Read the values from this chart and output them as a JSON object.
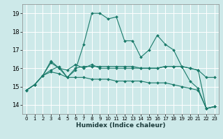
{
  "xlabel": "Humidex (Indice chaleur)",
  "xlim": [
    -0.5,
    23.5
  ],
  "ylim": [
    13.5,
    19.5
  ],
  "yticks": [
    14,
    15,
    16,
    17,
    18,
    19
  ],
  "xticks": [
    0,
    1,
    2,
    3,
    4,
    5,
    6,
    7,
    8,
    9,
    10,
    11,
    12,
    13,
    14,
    15,
    16,
    17,
    18,
    19,
    20,
    21,
    22,
    23
  ],
  "bg_color": "#cde9e9",
  "grid_color": "#ffffff",
  "line_color": "#1a7a6a",
  "series": [
    [
      14.8,
      15.1,
      15.6,
      16.4,
      16.0,
      15.5,
      15.9,
      17.3,
      19.0,
      19.0,
      18.7,
      18.8,
      17.5,
      17.5,
      16.6,
      17.0,
      17.8,
      17.3,
      17.0,
      16.1,
      15.3,
      14.9,
      13.8,
      13.9
    ],
    [
      14.8,
      15.1,
      15.6,
      15.9,
      16.1,
      15.5,
      16.0,
      16.1,
      16.1,
      16.1,
      16.1,
      16.1,
      16.1,
      16.1,
      16.0,
      16.0,
      16.0,
      16.1,
      16.1,
      16.1,
      16.0,
      15.9,
      15.5,
      15.5
    ],
    [
      14.8,
      15.1,
      15.6,
      15.8,
      15.7,
      15.5,
      15.5,
      15.5,
      15.4,
      15.4,
      15.4,
      15.3,
      15.3,
      15.3,
      15.3,
      15.2,
      15.2,
      15.2,
      15.1,
      15.0,
      14.9,
      14.8,
      13.8,
      13.9
    ],
    [
      14.8,
      15.1,
      15.6,
      16.3,
      16.0,
      15.9,
      16.2,
      16.0,
      16.2,
      16.0,
      16.0,
      16.0,
      16.0,
      16.0,
      16.0,
      16.0,
      16.0,
      16.1,
      16.1,
      16.1,
      16.0,
      15.9,
      13.8,
      13.9
    ]
  ]
}
